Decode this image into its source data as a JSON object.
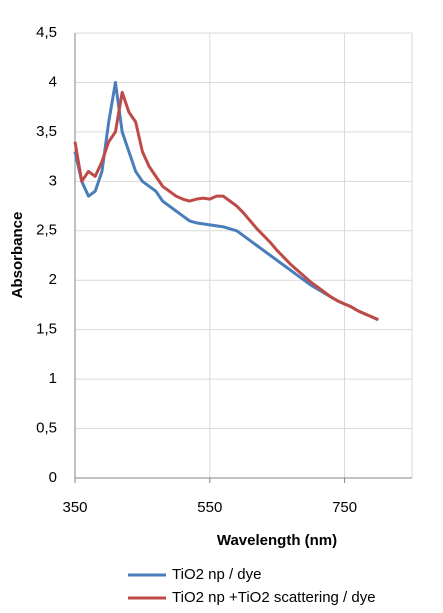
{
  "chart_data": {
    "type": "line",
    "x_label": "Wavelength (nm)",
    "y_label": "Absorbance",
    "xlim": [
      350,
      850
    ],
    "ylim": [
      0,
      4.5
    ],
    "xticks": [
      350,
      550,
      750
    ],
    "yticks": [
      0,
      {
        "value": 0.5,
        "label": "0,5"
      },
      1,
      {
        "value": 1.5,
        "label": "1,5"
      },
      2,
      {
        "value": 2.5,
        "label": "2,5"
      },
      3,
      {
        "value": 3.5,
        "label": "3,5"
      },
      4,
      {
        "value": 4.5,
        "label": "4,5"
      }
    ],
    "grid": true,
    "legend": "bottom",
    "x": [
      350,
      360,
      370,
      380,
      390,
      400,
      410,
      420,
      430,
      440,
      450,
      460,
      470,
      480,
      490,
      500,
      510,
      520,
      530,
      540,
      550,
      560,
      570,
      580,
      590,
      600,
      610,
      620,
      630,
      640,
      650,
      660,
      670,
      680,
      690,
      700,
      710,
      720,
      730,
      740,
      750,
      760,
      770,
      780,
      790,
      800
    ],
    "series": [
      {
        "name": "TiO2 np / dye",
        "color": "#4a7ebb",
        "values": [
          3.3,
          3.0,
          2.85,
          2.9,
          3.1,
          3.6,
          4.0,
          3.5,
          3.3,
          3.1,
          3.0,
          2.95,
          2.9,
          2.8,
          2.75,
          2.7,
          2.65,
          2.6,
          2.58,
          2.57,
          2.56,
          2.55,
          2.54,
          2.52,
          2.5,
          2.45,
          2.4,
          2.35,
          2.3,
          2.25,
          2.2,
          2.15,
          2.1,
          2.05,
          2.0,
          1.95,
          1.91,
          1.87,
          1.83,
          1.79,
          1.76,
          1.73,
          1.69,
          1.66,
          1.63,
          1.6
        ]
      },
      {
        "name": "TiO2 np +TiO2 scattering / dye",
        "color": "#be4b48",
        "values": [
          3.4,
          3.0,
          3.1,
          3.05,
          3.2,
          3.4,
          3.5,
          3.9,
          3.7,
          3.6,
          3.3,
          3.15,
          3.05,
          2.95,
          2.9,
          2.85,
          2.82,
          2.8,
          2.82,
          2.83,
          2.82,
          2.85,
          2.85,
          2.8,
          2.75,
          2.68,
          2.6,
          2.52,
          2.45,
          2.38,
          2.3,
          2.23,
          2.16,
          2.1,
          2.04,
          1.98,
          1.93,
          1.88,
          1.83,
          1.79,
          1.76,
          1.73,
          1.69,
          1.66,
          1.63,
          1.6
        ]
      }
    ]
  }
}
